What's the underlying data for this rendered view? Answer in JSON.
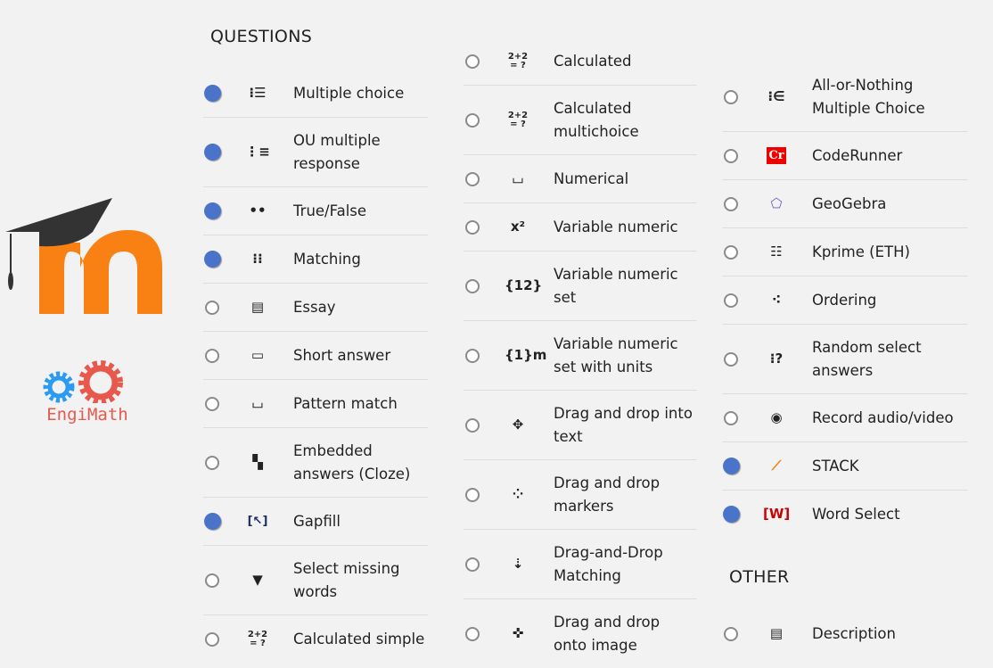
{
  "logos": {
    "moodle": "m",
    "engimath": "EngiMath"
  },
  "headers": {
    "questions": "QUESTIONS",
    "other": "OTHER"
  },
  "colors": {
    "selected": "#4a74c9",
    "moodle_orange": "#f98012",
    "engimath_red": "#e9584c",
    "engimath_blue": "#2b9af3"
  },
  "col1": [
    {
      "label": "Multiple choice",
      "selected": true,
      "icon": "list-icon"
    },
    {
      "label": "OU multiple response",
      "selected": true,
      "icon": "checklist-icon"
    },
    {
      "label": "True/False",
      "selected": true,
      "icon": "two-dots-icon"
    },
    {
      "label": "Matching",
      "selected": true,
      "icon": "matching-icon"
    },
    {
      "label": "Essay",
      "selected": false,
      "icon": "document-icon"
    },
    {
      "label": "Short answer",
      "selected": false,
      "icon": "text-box-icon"
    },
    {
      "label": "Pattern match",
      "selected": false,
      "icon": "pattern-icon"
    },
    {
      "label": "Embedded answers (Cloze)",
      "selected": false,
      "icon": "cloze-icon"
    },
    {
      "label": "Gapfill",
      "selected": true,
      "icon": "gapfill-icon"
    },
    {
      "label": "Select missing words",
      "selected": false,
      "icon": "triangle-down-icon"
    },
    {
      "label": "Calculated simple",
      "selected": false,
      "icon": "calculator-icon"
    }
  ],
  "col2": [
    {
      "label": "Calculated",
      "selected": false,
      "icon": "calculator-icon"
    },
    {
      "label": "Calculated multichoice",
      "selected": false,
      "icon": "calculator-icon"
    },
    {
      "label": "Numerical",
      "selected": false,
      "icon": "numerical-icon"
    },
    {
      "label": "Variable numeric",
      "selected": false,
      "icon": "variable-numeric-icon"
    },
    {
      "label": "Variable numeric set",
      "selected": false,
      "icon": "variable-set-icon"
    },
    {
      "label": "Variable numeric set with units",
      "selected": false,
      "icon": "variable-units-icon"
    },
    {
      "label": "Drag and drop into text",
      "selected": false,
      "icon": "move-icon"
    },
    {
      "label": "Drag and drop markers",
      "selected": false,
      "icon": "markers-icon"
    },
    {
      "label": "Drag-and-Drop Matching",
      "selected": false,
      "icon": "dnd-matching-icon"
    },
    {
      "label": "Drag and drop onto image",
      "selected": false,
      "icon": "move-arrows-icon"
    }
  ],
  "col3": [
    {
      "label": "All-or-Nothing Multiple Choice",
      "selected": false,
      "icon": "all-or-nothing-icon"
    },
    {
      "label": "CodeRunner",
      "selected": false,
      "icon": "coderunner-icon"
    },
    {
      "label": "GeoGebra",
      "selected": false,
      "icon": "geogebra-icon"
    },
    {
      "label": "Kprime (ETH)",
      "selected": false,
      "icon": "kprime-icon"
    },
    {
      "label": "Ordering",
      "selected": false,
      "icon": "ordering-icon"
    },
    {
      "label": "Random select answers",
      "selected": false,
      "icon": "random-icon"
    },
    {
      "label": "Record audio/video",
      "selected": false,
      "icon": "record-icon"
    },
    {
      "label": "STACK",
      "selected": true,
      "icon": "stack-icon"
    },
    {
      "label": "Word Select",
      "selected": true,
      "icon": "word-select-icon"
    }
  ],
  "other": [
    {
      "label": "Description",
      "selected": false,
      "icon": "description-icon"
    }
  ]
}
